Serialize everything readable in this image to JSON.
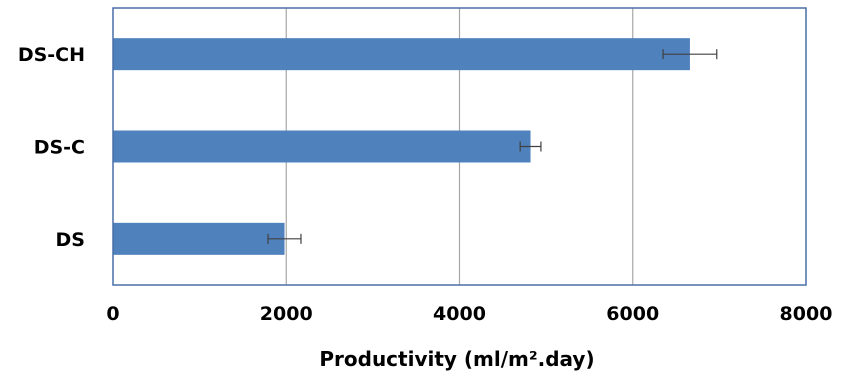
{
  "chart_data": {
    "type": "bar",
    "orientation": "horizontal",
    "categories": [
      "DS",
      "DS-C",
      "DS-CH"
    ],
    "values": [
      1980,
      4820,
      6660
    ],
    "errors": [
      190,
      120,
      310
    ],
    "xlabel": "Productivity (ml/m².day)",
    "ylabel": "",
    "xlim": [
      0,
      8000
    ],
    "xticks": [
      0,
      2000,
      4000,
      6000,
      8000
    ],
    "grid": "vertical",
    "legend": "none",
    "bar_color": "#4f81bd",
    "frame_color": "#4a6fa5",
    "grid_color": "#a6a6a6",
    "error_color": "#404040"
  }
}
